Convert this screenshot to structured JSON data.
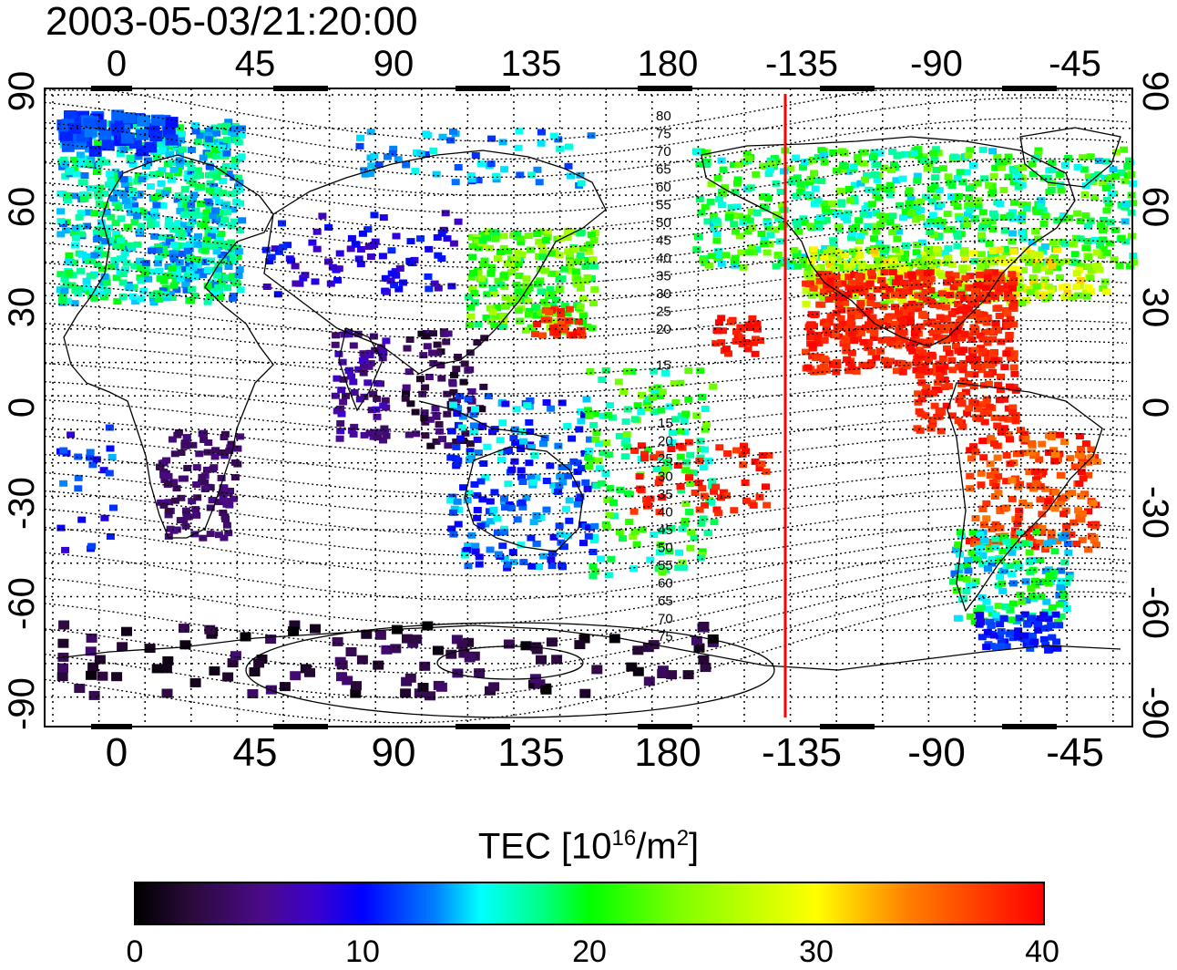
{
  "title": "2003-05-03/21:20:00",
  "lon_ticks_top": [
    "0",
    "45",
    "90",
    "135",
    "180",
    "-135",
    "-90",
    "-45"
  ],
  "lon_ticks_bottom": [
    "0",
    "45",
    "90",
    "135",
    "180",
    "-135",
    "-90",
    "-45"
  ],
  "lat_ticks_left": [
    "90",
    "60",
    "30",
    "0",
    "-30",
    "-60",
    "-90"
  ],
  "lat_ticks_right": [
    "90",
    "60",
    "30",
    "0",
    "-30",
    "-60",
    "-90"
  ],
  "contour_labels_north": [
    "80",
    "75",
    "70",
    "65",
    "60",
    "55",
    "50",
    "45",
    "40",
    "35",
    "30",
    "25",
    "20",
    "15"
  ],
  "contour_labels_south": [
    "15",
    "20",
    "25",
    "30",
    "35",
    "40",
    "45",
    "50",
    "55",
    "60",
    "65",
    "70",
    "75"
  ],
  "colorbar": {
    "label_main": "TEC  [10",
    "label_sup1": "16",
    "label_mid": "/m",
    "label_sup2": "2",
    "label_end": "]",
    "ticks": [
      "0",
      "10",
      "20",
      "30",
      "40"
    ],
    "range": [
      0,
      40
    ]
  },
  "terminator_color": "#ff0000",
  "colors": {
    "low": "#000000",
    "mid_low": "#0000ff",
    "mid": "#00ff00",
    "high": "#ffff00",
    "max": "#ff0000"
  }
}
